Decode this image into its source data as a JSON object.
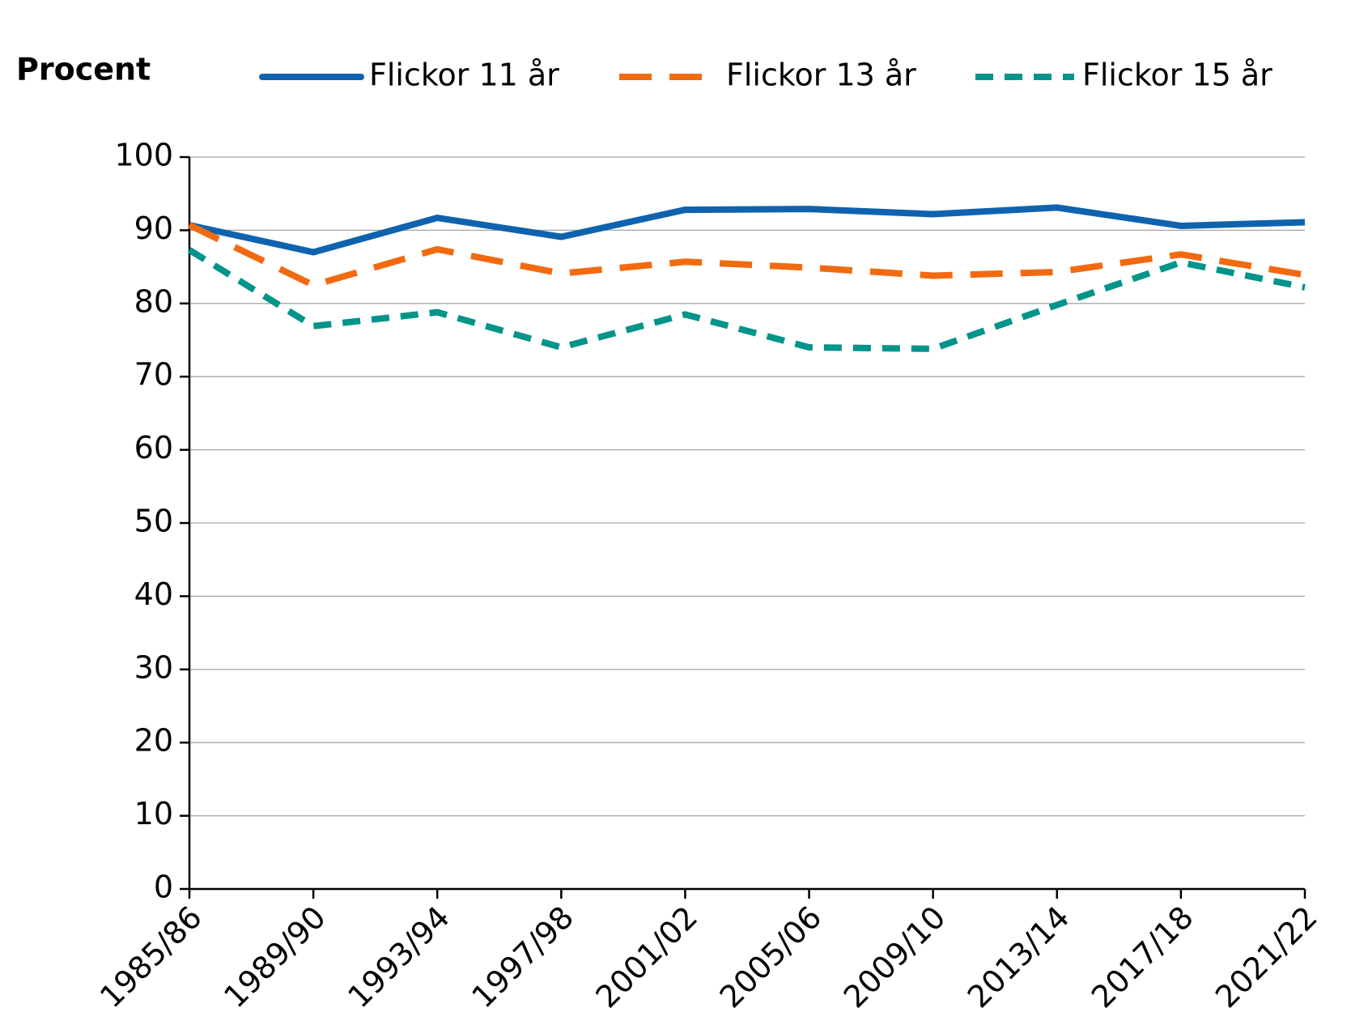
{
  "chart_data": {
    "type": "line",
    "y_label": "Procent",
    "categories": [
      "1985/86",
      "1989/90",
      "1993/94",
      "1997/98",
      "2001/02",
      "2005/06",
      "2009/10",
      "2013/14",
      "2017/18",
      "2021/22"
    ],
    "series": [
      {
        "name": "Flickor 11 år",
        "color": "#0f63ae",
        "style": "solid",
        "values": [
          90.7,
          87.0,
          91.7,
          89.1,
          92.8,
          92.9,
          92.2,
          93.1,
          90.6,
          91.1
        ]
      },
      {
        "name": "Flickor 13 år",
        "color": "#f26a10",
        "style": "dashed",
        "values": [
          90.7,
          82.5,
          87.4,
          84.1,
          85.7,
          84.9,
          83.8,
          84.3,
          86.7,
          83.9
        ]
      },
      {
        "name": "Flickor 15 år",
        "color": "#00948a",
        "style": "dotted",
        "values": [
          87.3,
          76.9,
          78.8,
          74.0,
          78.5,
          74.0,
          73.8,
          79.8,
          85.6,
          82.2
        ]
      }
    ],
    "ylim": [
      0,
      100
    ],
    "yticks": [
      0,
      10,
      20,
      30,
      40,
      50,
      60,
      70,
      80,
      90,
      100
    ],
    "grid": true,
    "legend": "top"
  }
}
